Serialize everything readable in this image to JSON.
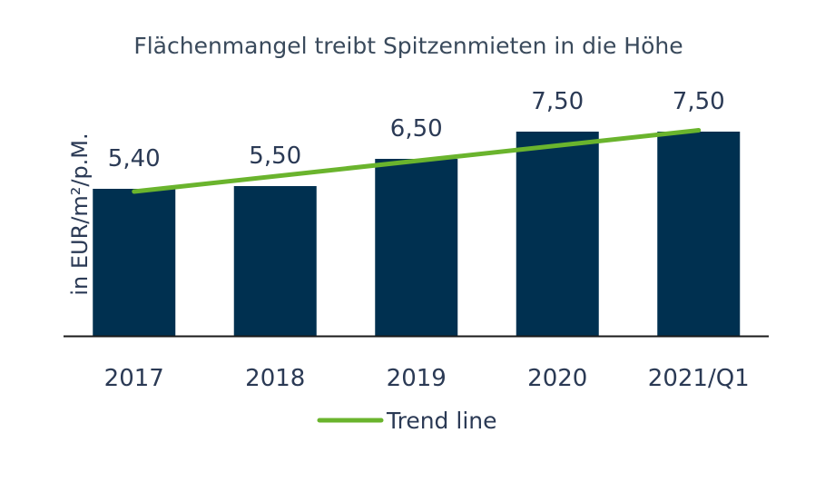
{
  "chart_data": {
    "type": "bar",
    "title": "Flächenmangel treibt Spitzenmieten in die Höhe",
    "ylabel": "in EUR/m²/p.M.",
    "categories": [
      "2017",
      "2018",
      "2019",
      "2020",
      "2021/Q1"
    ],
    "values": [
      5.4,
      5.5,
      6.5,
      7.5,
      7.5
    ],
    "value_labels": [
      "5,40",
      "5,50",
      "6,50",
      "7,50",
      "7,50"
    ],
    "ylim": [
      0,
      8.5
    ],
    "grid": false,
    "trend": {
      "name": "Trend line",
      "start": 5.3,
      "end": 7.55
    },
    "legend": {
      "position": "bottom",
      "entries": [
        "Trend line"
      ]
    },
    "colors": {
      "bar": "#003050",
      "trend": "#6ab42d",
      "text": "#2b3a55",
      "title": "#3a4a5c",
      "axis": "#1a1a1a"
    }
  }
}
